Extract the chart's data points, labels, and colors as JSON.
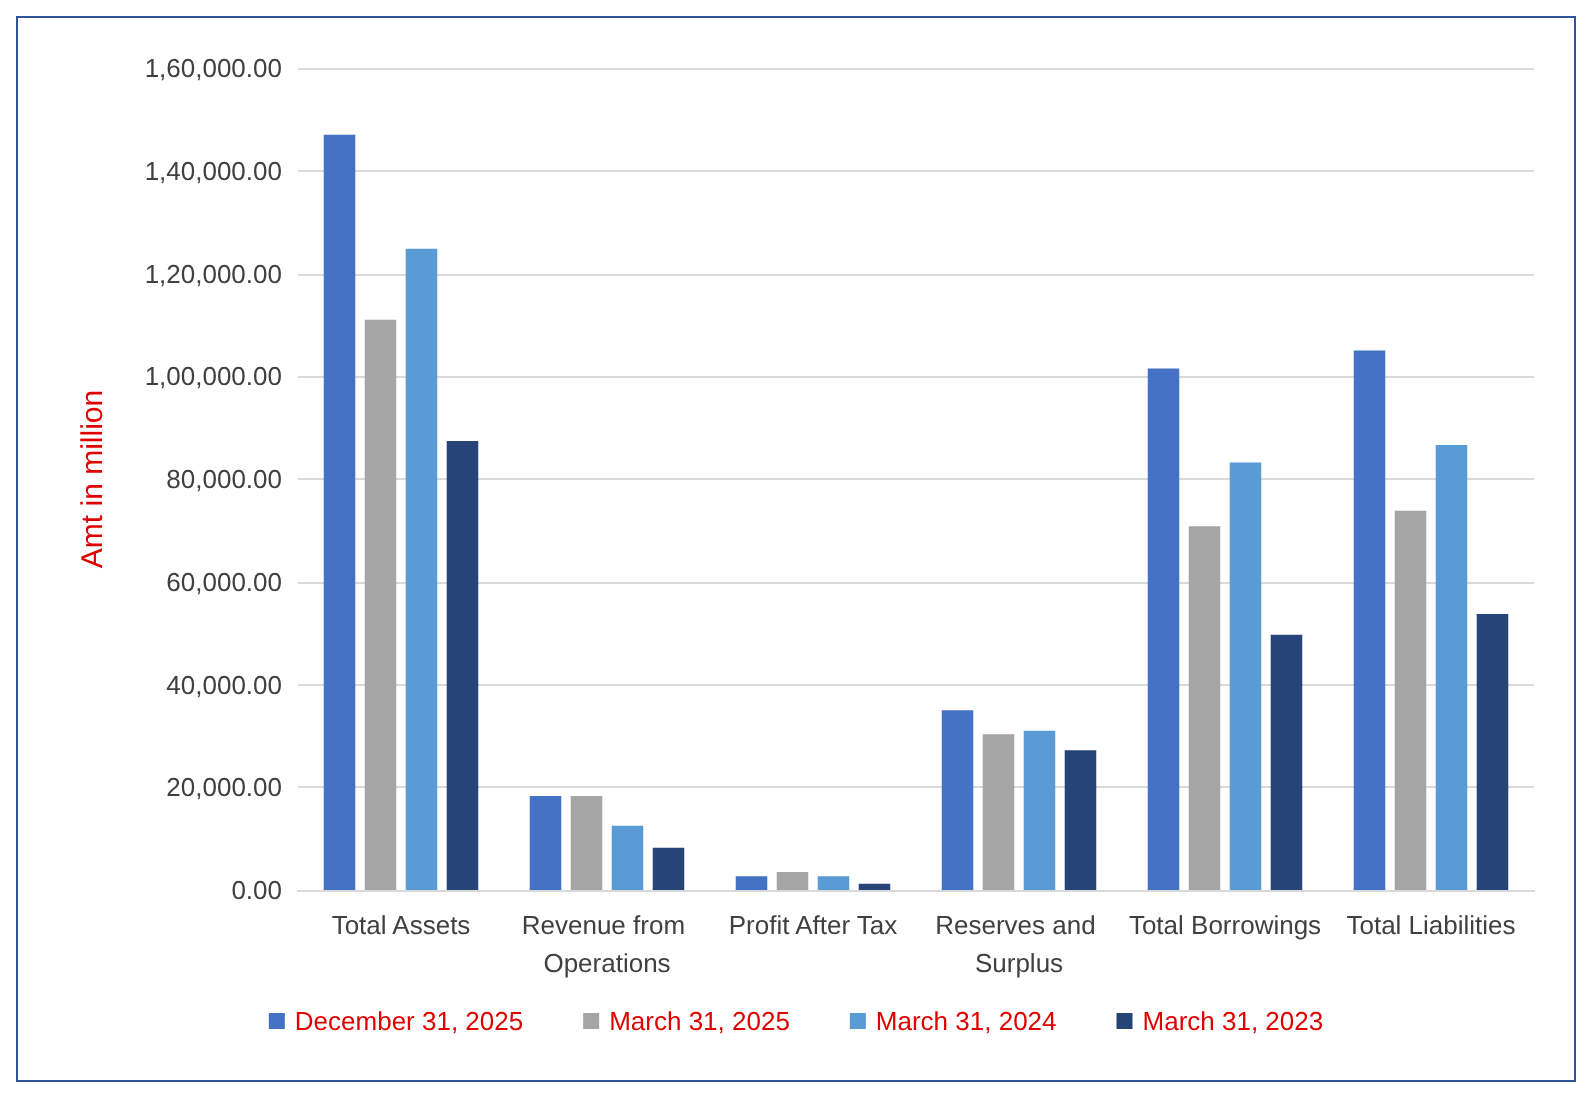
{
  "chart_data": {
    "type": "bar",
    "ylabel": "Amt in million",
    "categories": [
      "Total Assets",
      "Revenue from Operations",
      "Profit After Tax",
      "Reserves and Surplus",
      "Total Borrowings",
      "Total Liabilities"
    ],
    "series": [
      {
        "name": "December 31, 2025",
        "color": "#4472c4",
        "values": [
          147000,
          18300,
          2700,
          35000,
          101500,
          105000
        ]
      },
      {
        "name": "March 31, 2025",
        "color": "#a5a5a5",
        "values": [
          111000,
          18300,
          3500,
          30300,
          70800,
          73800
        ]
      },
      {
        "name": "March 31, 2024",
        "color": "#5b9bd5",
        "values": [
          124800,
          12500,
          2700,
          31000,
          83200,
          86600
        ]
      },
      {
        "name": "March 31, 2023",
        "color": "#264478",
        "values": [
          87400,
          8200,
          1200,
          27200,
          49700,
          53700
        ]
      }
    ],
    "ylim": [
      0,
      160000
    ],
    "yticks": [
      {
        "value": 0,
        "label": "0.00"
      },
      {
        "value": 20000,
        "label": "20,000.00"
      },
      {
        "value": 40000,
        "label": "40,000.00"
      },
      {
        "value": 60000,
        "label": "60,000.00"
      },
      {
        "value": 80000,
        "label": "80,000.00"
      },
      {
        "value": 100000,
        "label": "1,00,000.00"
      },
      {
        "value": 120000,
        "label": "1,20,000.00"
      },
      {
        "value": 140000,
        "label": "1,40,000.00"
      },
      {
        "value": 160000,
        "label": "1,60,000.00"
      }
    ],
    "grid": "y",
    "legend": "bottom"
  }
}
